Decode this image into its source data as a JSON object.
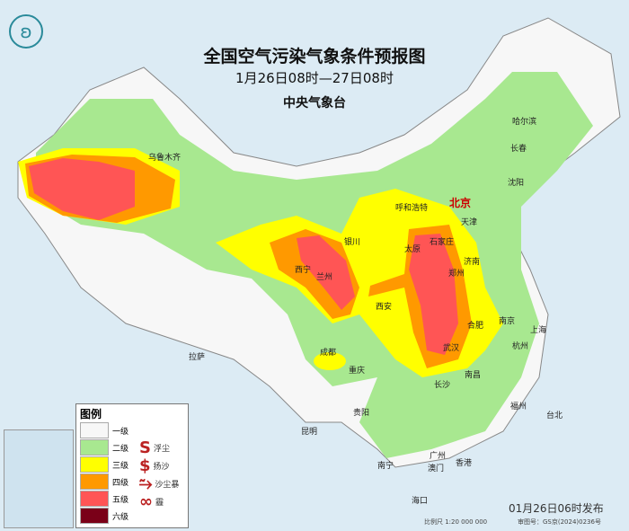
{
  "header": {
    "title": "全国空气污染气象条件预报图",
    "period": "1月26日08时—27日08时",
    "issuer": "中央气象台"
  },
  "cities": [
    {
      "name": "乌鲁木齐",
      "cap": false
    },
    {
      "name": "哈尔滨",
      "cap": false
    },
    {
      "name": "长春",
      "cap": false
    },
    {
      "name": "沈阳",
      "cap": false
    },
    {
      "name": "呼和浩特",
      "cap": false
    },
    {
      "name": "北京",
      "cap": true
    },
    {
      "name": "天津",
      "cap": false
    },
    {
      "name": "银川",
      "cap": false
    },
    {
      "name": "太原",
      "cap": false
    },
    {
      "name": "石家庄",
      "cap": false
    },
    {
      "name": "济南",
      "cap": false
    },
    {
      "name": "西宁",
      "cap": false
    },
    {
      "name": "兰州",
      "cap": false
    },
    {
      "name": "西安",
      "cap": false
    },
    {
      "name": "郑州",
      "cap": false
    },
    {
      "name": "合肥",
      "cap": false
    },
    {
      "name": "南京",
      "cap": false
    },
    {
      "name": "上海",
      "cap": false
    },
    {
      "name": "杭州",
      "cap": false
    },
    {
      "name": "武汉",
      "cap": false
    },
    {
      "name": "成都",
      "cap": false
    },
    {
      "name": "重庆",
      "cap": false
    },
    {
      "name": "长沙",
      "cap": false
    },
    {
      "name": "南昌",
      "cap": false
    },
    {
      "name": "拉萨",
      "cap": false
    },
    {
      "name": "贵阳",
      "cap": false
    },
    {
      "name": "昆明",
      "cap": false
    },
    {
      "name": "福州",
      "cap": false
    },
    {
      "name": "台北",
      "cap": false
    },
    {
      "name": "广州",
      "cap": false
    },
    {
      "name": "澳门",
      "cap": false
    },
    {
      "name": "香港",
      "cap": false
    },
    {
      "name": "南宁",
      "cap": false
    },
    {
      "name": "海口",
      "cap": false
    }
  ],
  "legend": {
    "title": "图例",
    "levels": [
      {
        "label": "一级",
        "color": "#f7f7f7"
      },
      {
        "label": "二级",
        "color": "#a8e890"
      },
      {
        "label": "三级",
        "color": "#ffff00"
      },
      {
        "label": "四级",
        "color": "#ff9900"
      },
      {
        "label": "五级",
        "color": "#ff5555"
      },
      {
        "label": "六级",
        "color": "#7a0018"
      }
    ],
    "symbols": [
      {
        "glyph": "S",
        "label": "浮尘"
      },
      {
        "glyph": "$",
        "label": "扬沙"
      },
      {
        "glyph": "⥲",
        "label": "沙尘暴"
      },
      {
        "glyph": "∞",
        "label": "霾"
      }
    ]
  },
  "footer": {
    "issued": "01月26日06时发布",
    "scale": "比例尺 1:20 000 000",
    "approval": "审图号：GS京(2024)0236号"
  },
  "logo": "ʚ"
}
